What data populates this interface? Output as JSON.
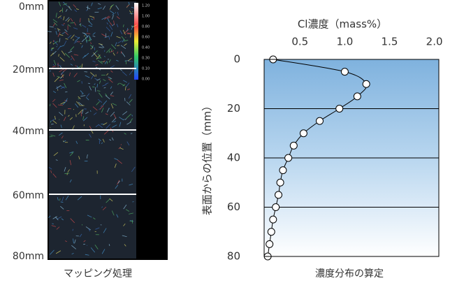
{
  "mapping": {
    "labels": [
      "0mm",
      "20mm",
      "40mm",
      "60mm",
      "80mm"
    ],
    "colorbar": [
      "1.20",
      "1.00",
      "0.80",
      "0.60",
      "0.40",
      "0.30",
      "0.10",
      "0.00"
    ],
    "caption": "マッピング処理"
  },
  "chart_data": {
    "type": "line",
    "value_axis": "horizontal",
    "x_label": "表面からの位置（mm）",
    "y_label": "Cl濃度（mass%）",
    "caption": "濃度分布の算定",
    "x": [
      0,
      5,
      10,
      15,
      20,
      25,
      30,
      35,
      40,
      45,
      50,
      55,
      60,
      65,
      70,
      75,
      80
    ],
    "values": [
      0.2,
      1.0,
      1.24,
      1.14,
      0.94,
      0.72,
      0.54,
      0.43,
      0.37,
      0.31,
      0.28,
      0.26,
      0.23,
      0.2,
      0.18,
      0.16,
      0.14
    ],
    "xlim": [
      0,
      80
    ],
    "xticks": [
      0,
      20,
      40,
      60,
      80
    ],
    "ylim": [
      0.1,
      2.05
    ],
    "yticks": [
      0.5,
      {
        "value": 1,
        "label": "1.0"
      },
      1.5,
      {
        "value": 2,
        "label": "2.0"
      }
    ],
    "grid": true,
    "color": "#000000"
  }
}
